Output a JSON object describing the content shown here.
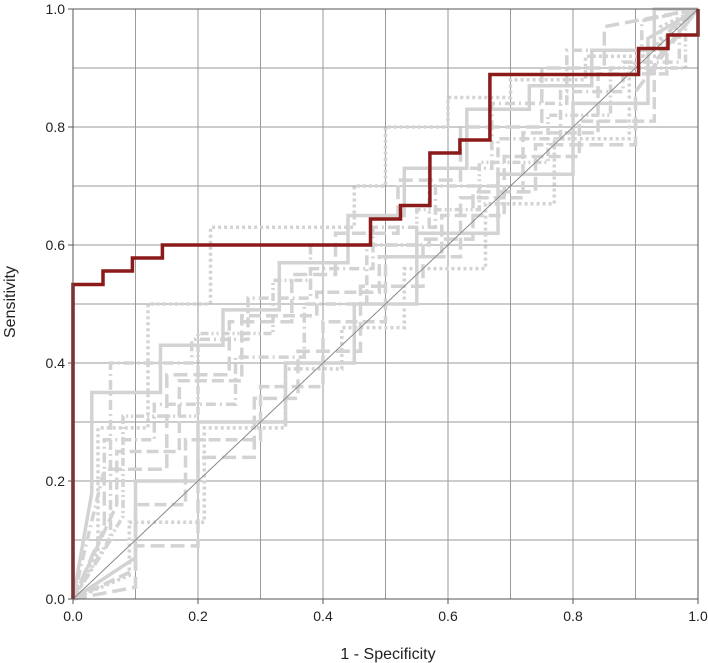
{
  "chart_data": {
    "type": "line",
    "title": "",
    "xlabel": "1 - Specificity",
    "ylabel": "Sensitivity",
    "xlim": [
      0,
      1
    ],
    "ylim": [
      0,
      1
    ],
    "grid": true,
    "x_ticks": [
      "0.0",
      "0.2",
      "0.4",
      "0.6",
      "0.8",
      "1.0"
    ],
    "y_ticks": [
      "0.0",
      "0.2",
      "0.4",
      "0.6",
      "0.8",
      "1.0"
    ],
    "colors": {
      "main": "#8b1a1a",
      "background_curves": "#d3d3d3",
      "diagonal": "#888888",
      "grid": "#9a9a9a"
    },
    "diagonal": {
      "x": [
        0,
        1
      ],
      "y": [
        0,
        1
      ]
    },
    "series": [
      {
        "role": "main",
        "x": [
          0,
          0,
          0.048,
          0.048,
          0.095,
          0.095,
          0.143,
          0.143,
          0.476,
          0.476,
          0.524,
          0.524,
          0.571,
          0.571,
          0.619,
          0.619,
          0.667,
          0.667,
          0.905,
          0.905,
          0.952,
          0.952,
          1.0,
          1.0
        ],
        "y": [
          0,
          0.533,
          0.533,
          0.556,
          0.556,
          0.578,
          0.578,
          0.6,
          0.6,
          0.644,
          0.644,
          0.667,
          0.667,
          0.756,
          0.756,
          0.778,
          0.778,
          0.889,
          0.889,
          0.933,
          0.933,
          0.956,
          0.956,
          1.0
        ]
      },
      {
        "role": "background",
        "dash": "none",
        "x": [
          0,
          0.1,
          0.1,
          0.2,
          0.2,
          0.34,
          0.34,
          0.45,
          0.45,
          0.55,
          0.55,
          0.68,
          0.68,
          0.8,
          0.8,
          0.92,
          0.92,
          1.0
        ],
        "y": [
          0,
          0.07,
          0.2,
          0.2,
          0.3,
          0.3,
          0.4,
          0.4,
          0.5,
          0.5,
          0.62,
          0.62,
          0.72,
          0.72,
          0.84,
          0.84,
          0.95,
          1.0
        ]
      },
      {
        "role": "background",
        "dash": "14 6",
        "x": [
          0,
          0.05,
          0.05,
          0.15,
          0.15,
          0.25,
          0.25,
          0.35,
          0.35,
          0.42,
          0.42,
          0.52,
          0.52,
          0.62,
          0.62,
          0.75,
          0.75,
          0.85,
          0.85,
          1.0
        ],
        "y": [
          0,
          0.12,
          0.22,
          0.22,
          0.38,
          0.38,
          0.47,
          0.47,
          0.55,
          0.55,
          0.62,
          0.62,
          0.71,
          0.71,
          0.8,
          0.8,
          0.9,
          0.9,
          0.97,
          1.0
        ]
      },
      {
        "role": "background",
        "dash": "10 4 2 4",
        "x": [
          0,
          0.06,
          0.06,
          0.19,
          0.19,
          0.28,
          0.28,
          0.38,
          0.38,
          0.48,
          0.48,
          0.58,
          0.58,
          0.68,
          0.68,
          0.78,
          0.78,
          0.88,
          0.88,
          0.97,
          0.97,
          1.0
        ],
        "y": [
          0,
          0.1,
          0.4,
          0.4,
          0.44,
          0.44,
          0.51,
          0.51,
          0.56,
          0.56,
          0.63,
          0.63,
          0.7,
          0.7,
          0.78,
          0.78,
          0.86,
          0.86,
          0.91,
          0.91,
          0.98,
          1.0
        ]
      },
      {
        "role": "background",
        "dash": "3 3",
        "x": [
          0,
          0.04,
          0.04,
          0.12,
          0.12,
          0.22,
          0.22,
          0.31,
          0.31,
          0.45,
          0.45,
          0.5,
          0.5,
          0.6,
          0.6,
          0.7,
          0.7,
          0.82,
          0.82,
          0.94,
          0.94,
          1.0
        ],
        "y": [
          0,
          0.08,
          0.29,
          0.29,
          0.5,
          0.5,
          0.63,
          0.63,
          0.63,
          0.63,
          0.7,
          0.7,
          0.8,
          0.8,
          0.85,
          0.85,
          0.88,
          0.88,
          0.92,
          0.92,
          0.97,
          1.0
        ]
      },
      {
        "role": "background",
        "dash": "12 5",
        "x": [
          0,
          0.1,
          0.1,
          0.18,
          0.18,
          0.3,
          0.3,
          0.4,
          0.4,
          0.5,
          0.5,
          0.62,
          0.62,
          0.72,
          0.72,
          0.84,
          0.84,
          0.95,
          0.95,
          1.0
        ],
        "y": [
          0,
          0.05,
          0.16,
          0.16,
          0.27,
          0.27,
          0.36,
          0.36,
          0.47,
          0.47,
          0.58,
          0.58,
          0.68,
          0.68,
          0.79,
          0.79,
          0.89,
          0.89,
          0.96,
          1.0
        ]
      },
      {
        "role": "background",
        "dash": "8 3 2 3 2 3",
        "x": [
          0,
          0.08,
          0.08,
          0.2,
          0.2,
          0.32,
          0.32,
          0.38,
          0.38,
          0.55,
          0.55,
          0.65,
          0.65,
          0.76,
          0.76,
          0.86,
          0.86,
          0.98,
          0.98,
          1.0
        ],
        "y": [
          0,
          0.14,
          0.31,
          0.31,
          0.45,
          0.45,
          0.54,
          0.54,
          0.6,
          0.6,
          0.66,
          0.66,
          0.74,
          0.74,
          0.82,
          0.82,
          0.9,
          0.9,
          0.99,
          1.0
        ]
      },
      {
        "role": "background",
        "dash": "none",
        "x": [
          0,
          0.03,
          0.03,
          0.14,
          0.14,
          0.24,
          0.24,
          0.33,
          0.33,
          0.44,
          0.44,
          0.53,
          0.53,
          0.63,
          0.63,
          0.73,
          0.73,
          0.83,
          0.83,
          0.93,
          0.93,
          1.0
        ],
        "y": [
          0,
          0.18,
          0.35,
          0.35,
          0.43,
          0.43,
          0.49,
          0.49,
          0.57,
          0.57,
          0.65,
          0.65,
          0.73,
          0.73,
          0.83,
          0.83,
          0.87,
          0.87,
          0.93,
          0.93,
          1.0,
          1.0
        ]
      },
      {
        "role": "background",
        "dash": "14 6",
        "x": [
          0,
          0.1,
          0.1,
          0.2,
          0.2,
          0.29,
          0.29,
          0.36,
          0.36,
          0.46,
          0.46,
          0.56,
          0.56,
          0.64,
          0.64,
          0.74,
          0.74,
          0.9,
          0.9,
          1.0
        ],
        "y": [
          0,
          0.02,
          0.09,
          0.09,
          0.24,
          0.24,
          0.34,
          0.34,
          0.42,
          0.42,
          0.53,
          0.53,
          0.61,
          0.61,
          0.69,
          0.69,
          0.77,
          0.77,
          0.86,
          1.0
        ]
      },
      {
        "role": "background",
        "dash": "10 4 2 4",
        "x": [
          0,
          0.05,
          0.05,
          0.13,
          0.13,
          0.26,
          0.26,
          0.37,
          0.37,
          0.47,
          0.47,
          0.57,
          0.57,
          0.67,
          0.67,
          0.79,
          0.79,
          0.91,
          0.91,
          1.0
        ],
        "y": [
          0,
          0.22,
          0.27,
          0.27,
          0.33,
          0.33,
          0.41,
          0.41,
          0.5,
          0.5,
          0.6,
          0.6,
          0.73,
          0.73,
          0.84,
          0.84,
          0.93,
          0.93,
          0.98,
          1.0
        ]
      },
      {
        "role": "background",
        "dash": "3 3",
        "x": [
          0,
          0.09,
          0.09,
          0.21,
          0.21,
          0.34,
          0.34,
          0.43,
          0.43,
          0.53,
          0.53,
          0.66,
          0.66,
          0.77,
          0.77,
          0.89,
          0.89,
          1.0
        ],
        "y": [
          0,
          0.04,
          0.13,
          0.13,
          0.29,
          0.29,
          0.39,
          0.39,
          0.46,
          0.46,
          0.56,
          0.56,
          0.67,
          0.67,
          0.78,
          0.78,
          0.9,
          1.0
        ]
      },
      {
        "role": "background",
        "dash": "12 5",
        "x": [
          0,
          0.07,
          0.07,
          0.17,
          0.17,
          0.27,
          0.27,
          0.39,
          0.39,
          0.49,
          0.49,
          0.59,
          0.59,
          0.69,
          0.69,
          0.81,
          0.81,
          0.93,
          0.93,
          1.0
        ],
        "y": [
          0,
          0.16,
          0.25,
          0.25,
          0.37,
          0.37,
          0.48,
          0.48,
          0.52,
          0.52,
          0.58,
          0.58,
          0.65,
          0.65,
          0.75,
          0.75,
          0.81,
          0.81,
          0.91,
          1.0
        ]
      }
    ]
  }
}
